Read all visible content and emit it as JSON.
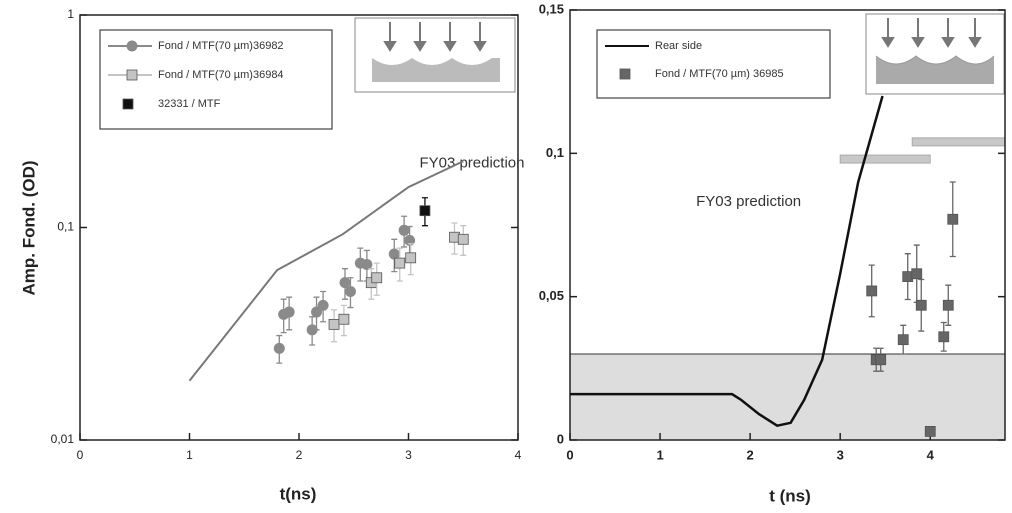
{
  "chart_data": [
    {
      "type": "scatter",
      "log_y": true,
      "legend": "top-left",
      "y_label": "Amp. Fond. (OD)",
      "x_label": "t(ns)",
      "xlim": [
        0,
        4
      ],
      "xticks": [
        0,
        1,
        2,
        3,
        4
      ],
      "ylim": [
        0.01,
        1
      ],
      "yticks": [
        {
          "value": 0.01,
          "label": "0,01"
        },
        {
          "value": 0.1,
          "label": "0,1"
        },
        1
      ],
      "annotations": [
        "FY03 prediction"
      ],
      "series": [
        {
          "name": "Fond / MTF(70 µm)36982",
          "color": "#8a8a8a",
          "marker": "circle",
          "x": [
            1.82,
            1.86,
            1.91,
            2.12,
            2.16,
            2.22,
            2.42,
            2.47,
            2.56,
            2.62,
            2.87,
            2.96,
            3.01
          ],
          "values": [
            0.027,
            0.039,
            0.04,
            0.033,
            0.04,
            0.043,
            0.055,
            0.05,
            0.068,
            0.067,
            0.075,
            0.097,
            0.087
          ],
          "errors": [
            0.004,
            0.007,
            0.007,
            0.005,
            0.007,
            0.007,
            0.009,
            0.008,
            0.012,
            0.011,
            0.013,
            0.016,
            0.014
          ]
        },
        {
          "name": "Fond / MTF(70 µm)36984",
          "color": "#c4c4c4",
          "marker": "square",
          "x": [
            2.32,
            2.41,
            2.66,
            2.71,
            2.92,
            3.02,
            3.42,
            3.5
          ],
          "values": [
            0.035,
            0.037,
            0.055,
            0.058,
            0.068,
            0.072,
            0.09,
            0.088
          ],
          "errors": [
            0.006,
            0.006,
            0.009,
            0.01,
            0.012,
            0.012,
            0.015,
            0.014
          ]
        },
        {
          "name": "32331 / MTF",
          "color": "#111111",
          "marker": "square",
          "x": [
            3.15
          ],
          "values": [
            0.12
          ],
          "errors": [
            0.018
          ]
        },
        {
          "color": "#777777",
          "marker": "line",
          "x": [
            1,
            1.8,
            2.4,
            3,
            3.5
          ],
          "values": [
            0.019,
            0.063,
            0.093,
            0.155,
            0.205
          ]
        }
      ]
    },
    {
      "type": "scatter",
      "log_y": false,
      "legend": "top-left",
      "x_label": "t (ns)",
      "xlim": [
        0,
        4.83
      ],
      "xticks": [
        0,
        1,
        2,
        3,
        4
      ],
      "ylim": [
        0,
        0.15
      ],
      "yticks": [
        0,
        {
          "value": 0.05,
          "label": "0,05"
        },
        {
          "value": 0.1,
          "label": "0,1"
        },
        {
          "value": 0.15,
          "label": "0,15"
        }
      ],
      "shaded_band": [
        0,
        0.03
      ],
      "shade_color": "#dddddd",
      "ranges": [
        {
          "x": [
            3,
            4
          ],
          "y": 0.098
        },
        {
          "x": [
            3.8,
            4.83
          ],
          "y": 0.104
        }
      ],
      "range_color": "#c8c8c8",
      "annotations": [
        "FY03 prediction"
      ],
      "series": [
        {
          "name": "Rear side",
          "color": "#111111",
          "marker": "line",
          "x": [
            0,
            1.8,
            1.9,
            2.1,
            2.3,
            2.45,
            2.6,
            2.8,
            3.0,
            3.2,
            3.47
          ],
          "values": [
            0.016,
            0.016,
            0.014,
            0.009,
            0.005,
            0.006,
            0.014,
            0.028,
            0.058,
            0.09,
            0.12
          ]
        },
        {
          "name": "Fond / MTF(70 µm) 36985",
          "color": "#666666",
          "marker": "square",
          "x": [
            3.35,
            3.4,
            3.45,
            3.7,
            3.75,
            3.85,
            3.9,
            4.0,
            4.15,
            4.2,
            4.25
          ],
          "values": [
            0.052,
            0.028,
            0.028,
            0.035,
            0.057,
            0.058,
            0.047,
            0.003,
            0.036,
            0.047,
            0.077
          ],
          "errors": [
            0.009,
            0.004,
            0.004,
            0.005,
            0.008,
            0.01,
            0.009,
            0.0,
            0.005,
            0.007,
            0.013
          ]
        }
      ]
    }
  ]
}
